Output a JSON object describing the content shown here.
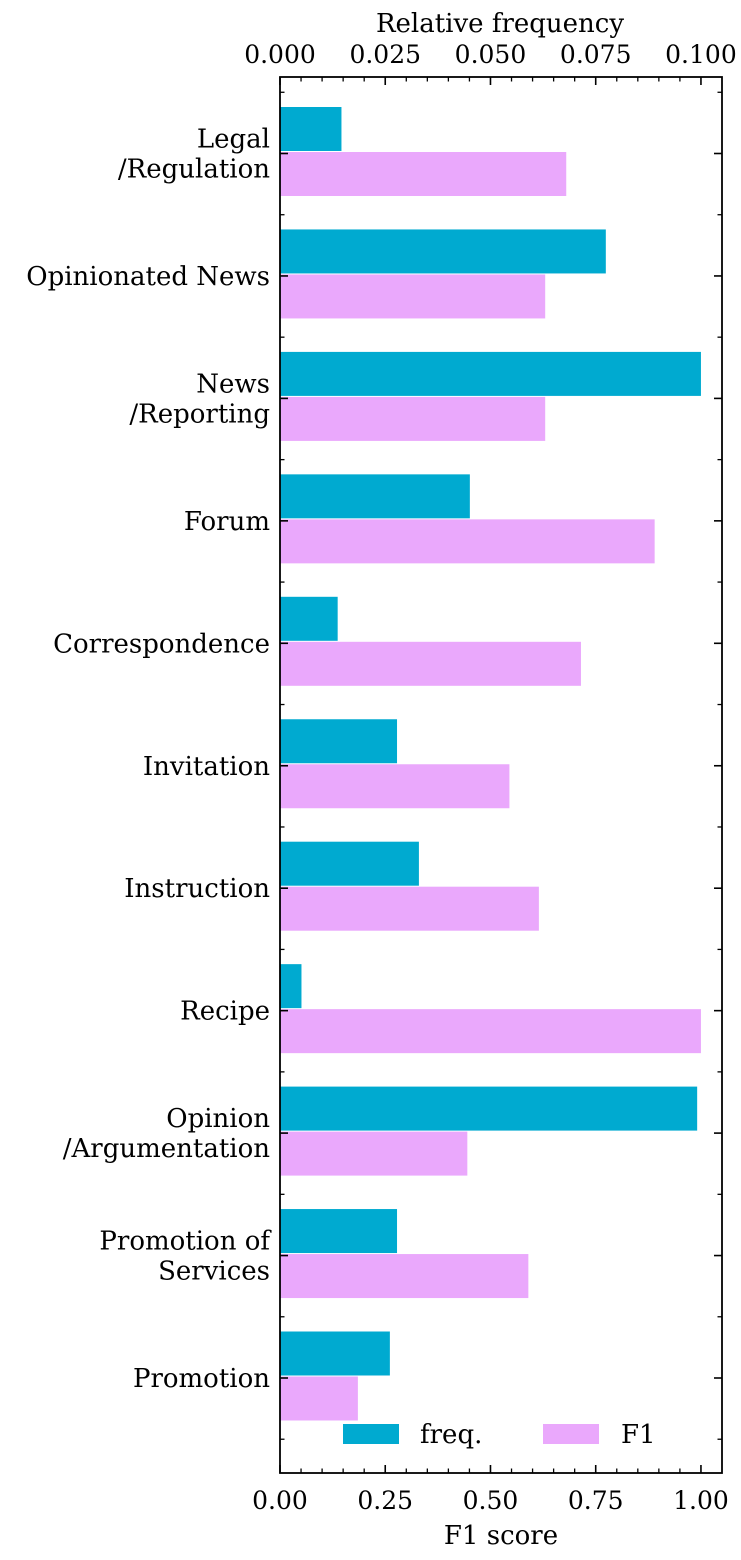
{
  "chart_data": {
    "type": "bar",
    "orientation": "horizontal",
    "categories": [
      [
        "Legal",
        "/Regulation"
      ],
      [
        "Opinionated News"
      ],
      [
        "News",
        "/Reporting"
      ],
      [
        "Forum"
      ],
      [
        "Correspondence"
      ],
      [
        "Invitation"
      ],
      [
        "Instruction"
      ],
      [
        "Recipe"
      ],
      [
        "Opinion",
        "/Argumentation"
      ],
      [
        "Promotion of",
        "Services"
      ],
      [
        "Promotion"
      ]
    ],
    "series": [
      {
        "name": "freq.",
        "axis": "top",
        "color": "#00aad0",
        "values": [
          0.0146,
          0.0774,
          0.1,
          0.0451,
          0.0137,
          0.0278,
          0.033,
          0.0051,
          0.0991,
          0.0278,
          0.0261
        ]
      },
      {
        "name": "F1",
        "axis": "bottom",
        "color": "#eaa8fc",
        "values": [
          0.68,
          0.63,
          0.63,
          0.89,
          0.715,
          0.545,
          0.615,
          1.0,
          0.445,
          0.59,
          0.185
        ]
      }
    ],
    "x_bottom": {
      "label": "F1 score",
      "lim": [
        0,
        1.05
      ],
      "ticks": [
        0,
        0.25,
        0.5,
        0.75,
        1.0
      ],
      "tick_labels": [
        "0.00",
        "0.25",
        "0.50",
        "0.75",
        "1.00"
      ]
    },
    "x_top": {
      "label": "Relative frequency",
      "lim": [
        0,
        0.105
      ],
      "ticks": [
        0,
        0.025,
        0.05,
        0.075,
        0.1
      ],
      "tick_labels": [
        "0.000",
        "0.025",
        "0.050",
        "0.075",
        "0.100"
      ]
    },
    "legend": {
      "placement": "bottom-right",
      "columns": 2,
      "entries": [
        "freq.",
        "F1"
      ]
    },
    "grid": false
  }
}
